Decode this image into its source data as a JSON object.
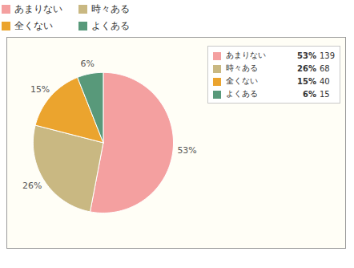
{
  "chart_data": {
    "type": "pie",
    "categories": [
      "あまりない",
      "時々ある",
      "全くない",
      "よくある"
    ],
    "values": [
      53,
      26,
      15,
      6
    ],
    "value_labels": [
      "53%",
      "26%",
      "15%",
      "6%"
    ],
    "counts": [
      139,
      68,
      40,
      15
    ],
    "colors": [
      "#f4a0a0",
      "#c9b882",
      "#eba42e",
      "#58997a"
    ],
    "data_labels": true,
    "legend": "top"
  }
}
